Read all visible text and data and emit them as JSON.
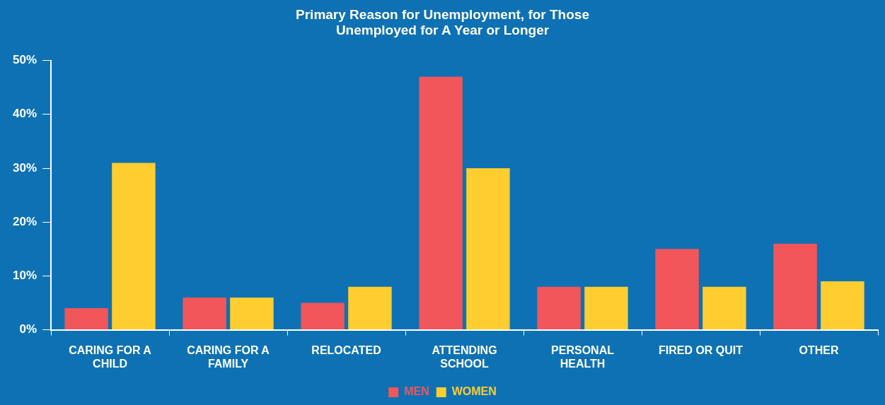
{
  "chart_data": {
    "type": "bar",
    "title": "Primary Reason for Unemployment, for Those\nUnemployed for A Year or Longer",
    "categories": [
      "CARING FOR A CHILD",
      "CARING FOR A FAMILY",
      "RELOCATED",
      "ATTENDING SCHOOL",
      "PERSONAL HEALTH",
      "FIRED OR QUIT",
      "OTHER"
    ],
    "series": [
      {
        "name": "MEN",
        "color": "#f0565a",
        "values": [
          4,
          6,
          5,
          47,
          8,
          15,
          16
        ]
      },
      {
        "name": "WOMEN",
        "color": "#fecd2f",
        "values": [
          31,
          6,
          8,
          30,
          8,
          8,
          9
        ]
      }
    ],
    "ylim": [
      0,
      50
    ],
    "yticks": [
      {
        "value": 0,
        "label": "0%"
      },
      {
        "value": 10,
        "label": "10%"
      },
      {
        "value": 20,
        "label": "20%"
      },
      {
        "value": 30,
        "label": "30%"
      },
      {
        "value": 40,
        "label": "40%"
      },
      {
        "value": 50,
        "label": "50%"
      }
    ],
    "grid": false,
    "legend": "bottom"
  }
}
